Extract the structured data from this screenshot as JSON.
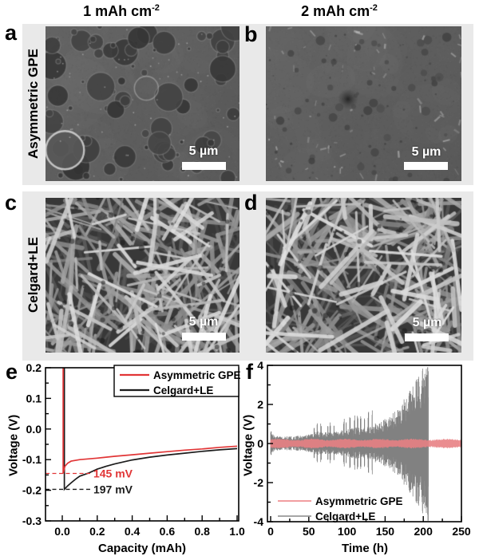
{
  "header": {
    "columns": [
      {
        "text": "1 mAh cm",
        "sup": "-2"
      },
      {
        "text": "2 mAh cm",
        "sup": "-2"
      }
    ]
  },
  "rows": [
    {
      "label": "Asymmetric GPE",
      "panels": [
        {
          "letter": "a",
          "scale_label": "5 µm"
        },
        {
          "letter": "b",
          "scale_label": "5 µm"
        }
      ]
    },
    {
      "label": "Celgard+LE",
      "panels": [
        {
          "letter": "c",
          "scale_label": "5 µm"
        },
        {
          "letter": "d",
          "scale_label": "5 µm"
        }
      ]
    }
  ],
  "colors": {
    "red": "#e13536",
    "black_curve": "#1c1c1c",
    "gray_trace": "#737373",
    "light_red_band": "#e88184",
    "row_bg": "#e9e9e9"
  },
  "chart_data": [
    {
      "panel": "e",
      "type": "line",
      "xlabel": "Capacity (mAh)",
      "ylabel": "Voltage (V)",
      "xlim": [
        -0.1,
        1.01
      ],
      "ylim": [
        -0.3,
        0.2
      ],
      "xticks": [
        0.0,
        0.2,
        0.4,
        0.6,
        0.8,
        1.0
      ],
      "xtick_labels": [
        "0.0",
        "0.2",
        "0.4",
        "0.6",
        "0.8",
        "1.0"
      ],
      "xminors": [
        0.1,
        0.3,
        0.5,
        0.7,
        0.9
      ],
      "yticks": [
        0.2,
        0.1,
        0.0,
        -0.1,
        -0.2,
        -0.3
      ],
      "ytick_labels": [
        "0.2",
        "0.1",
        "0.0",
        "-0.1",
        "-0.2",
        "-0.3"
      ],
      "yminors": [
        0.15,
        0.05,
        -0.05,
        -0.15,
        -0.25
      ],
      "legend": {
        "position": "top-right",
        "border": true,
        "entries": [
          {
            "label": "Asymmetric GPE",
            "color": "#e13536"
          },
          {
            "label": "Celgard+LE",
            "color": "#1c1c1c"
          }
        ]
      },
      "series": [
        {
          "name": "Celgard+LE",
          "color": "#1c1c1c",
          "x": [
            0.012,
            0.012,
            0.03,
            0.05,
            0.08,
            0.1,
            0.15,
            0.2,
            0.25,
            0.3,
            0.4,
            0.5,
            0.6,
            0.7,
            0.8,
            0.9,
            1.0
          ],
          "y": [
            0.2,
            -0.197,
            -0.186,
            -0.176,
            -0.162,
            -0.154,
            -0.144,
            -0.131,
            -0.122,
            -0.114,
            -0.101,
            -0.092,
            -0.085,
            -0.079,
            -0.073,
            -0.068,
            -0.064
          ]
        },
        {
          "name": "Asymmetric GPE",
          "color": "#e13536",
          "x": [
            0.005,
            0.005,
            0.015,
            0.03,
            0.05,
            0.1,
            0.2,
            0.3,
            0.4,
            0.5,
            0.6,
            0.7,
            0.8,
            0.9,
            1.0
          ],
          "y": [
            0.2,
            -0.145,
            -0.122,
            -0.112,
            -0.105,
            -0.1,
            -0.095,
            -0.089,
            -0.084,
            -0.079,
            -0.074,
            -0.069,
            -0.065,
            -0.06,
            -0.056
          ]
        }
      ],
      "annotations": [
        {
          "text": "145 mV",
          "color": "#e13536",
          "y": -0.145,
          "line_to_x": 0.17,
          "label_x": 0.178
        },
        {
          "text": "197 mV",
          "color": "#1c1c1c",
          "y": -0.197,
          "line_to_x": 0.17,
          "label_x": 0.178
        }
      ]
    },
    {
      "panel": "f",
      "type": "line",
      "xlabel": "Time (h)",
      "ylabel": "Voltage (V)",
      "xlim": [
        -4,
        254
      ],
      "ylim": [
        -4,
        4
      ],
      "xticks": [
        0,
        50,
        100,
        150,
        200,
        250
      ],
      "xtick_labels": [
        "0",
        "50",
        "100",
        "150",
        "200",
        "250"
      ],
      "xminors": [
        25,
        75,
        125,
        175,
        225
      ],
      "yticks": [
        4,
        2,
        0,
        -2,
        -4
      ],
      "ytick_labels": [
        "4",
        "2",
        "0",
        "-2",
        "-4"
      ],
      "yminors": [
        3,
        1,
        -1,
        -3
      ],
      "legend": {
        "position": "bottom-left",
        "border": false,
        "entries": [
          {
            "label": "Asymmetric GPE",
            "color": "#ef9092"
          },
          {
            "label": "Celgard+LE",
            "color": "#9a9a9a"
          }
        ]
      },
      "series": [
        {
          "name": "Celgard+LE",
          "color": "#737373",
          "render": "oscillation",
          "t_end": 207,
          "fail_time": 206.3,
          "fail_peak": 3.7,
          "fail_min": -3.95,
          "envelope_t": [
            0,
            2,
            5,
            15,
            30,
            45,
            55,
            62,
            70,
            80,
            90,
            100,
            110,
            120,
            130,
            140,
            150,
            158,
            166,
            174,
            182,
            190,
            196,
            201,
            204,
            206
          ],
          "envelope_v": [
            0.55,
            0.45,
            0.3,
            0.27,
            0.28,
            0.32,
            0.38,
            0.5,
            0.42,
            0.45,
            0.5,
            0.55,
            0.62,
            0.6,
            0.68,
            0.8,
            0.95,
            1.1,
            1.35,
            1.7,
            2.05,
            2.4,
            2.7,
            3.0,
            3.4,
            3.8
          ],
          "spike_times": [
            57,
            61,
            66,
            75,
            78,
            83,
            96,
            99,
            104,
            110,
            114,
            118,
            123,
            128,
            133
          ],
          "spike_gain": 2.1
        },
        {
          "name": "Asymmetric GPE",
          "color": "#e88184",
          "render": "oscillation",
          "t_end": 250,
          "amplitude": 0.2
        }
      ]
    }
  ]
}
